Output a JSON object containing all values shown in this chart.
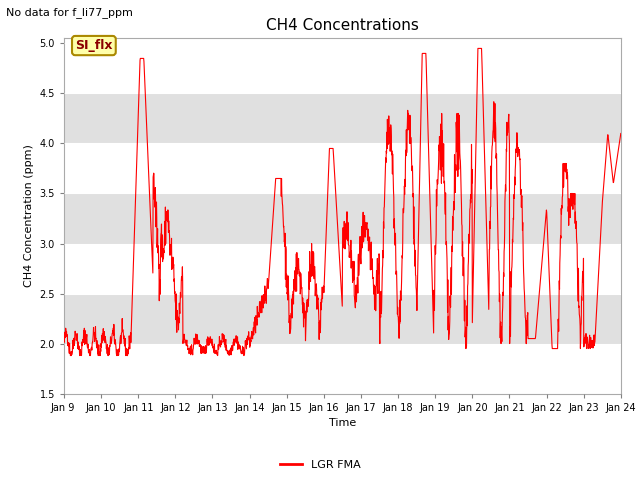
{
  "title": "CH4 Concentrations",
  "xlabel": "Time",
  "ylabel": "CH4 Concentration (ppm)",
  "ylim": [
    1.5,
    5.05
  ],
  "yticks": [
    1.5,
    2.0,
    2.5,
    3.0,
    3.5,
    4.0,
    4.5,
    5.0
  ],
  "xtick_labels": [
    "Jan 9 ",
    "Jan 10",
    "Jan 11",
    "Jan 12",
    "Jan 13",
    "Jan 14",
    "Jan 15",
    "Jan 16",
    "Jan 17",
    "Jan 18",
    "Jan 19",
    "Jan 20",
    "Jan 21",
    "Jan 22",
    "Jan 23",
    "Jan 24"
  ],
  "line_color": "red",
  "line_width": 0.8,
  "legend_label": "LGR FMA",
  "annotation_text": "No data for f_li77_ppm",
  "box_text": "SI_flx",
  "box_facecolor": "#ffffaa",
  "box_edgecolor": "#aa8800",
  "bg_color": "#e0e0e0",
  "white_band_color": "#ffffff",
  "title_fontsize": 11,
  "label_fontsize": 8,
  "tick_fontsize": 7,
  "annot_fontsize": 8,
  "legend_fontsize": 8
}
